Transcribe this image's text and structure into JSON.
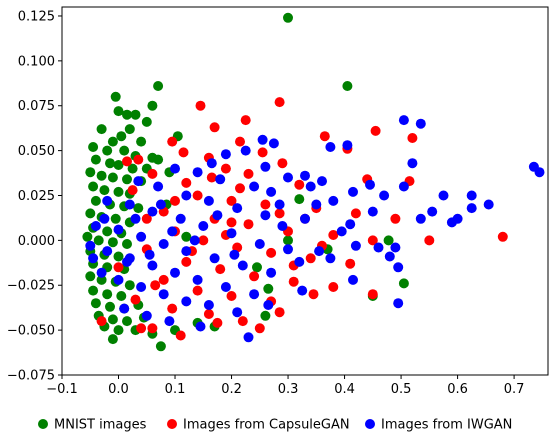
{
  "chart_data": {
    "type": "scatter",
    "title": "",
    "xlabel": "",
    "ylabel": "",
    "xlim": [
      -0.1,
      0.76
    ],
    "ylim": [
      -0.075,
      0.13
    ],
    "xticks": [
      -0.1,
      0.0,
      0.1,
      0.2,
      0.3,
      0.4,
      0.5,
      0.6,
      0.7
    ],
    "xtick_labels": [
      "−0.1",
      "0.0",
      "0.1",
      "0.2",
      "0.3",
      "0.4",
      "0.5",
      "0.6",
      "0.7"
    ],
    "yticks": [
      -0.075,
      -0.05,
      -0.025,
      0.0,
      0.025,
      0.05,
      0.075,
      0.1,
      0.125
    ],
    "ytick_labels": [
      "−0.075",
      "−0.050",
      "−0.025",
      "0.000",
      "0.025",
      "0.050",
      "0.075",
      "0.100",
      "0.125"
    ],
    "grid": false,
    "legend_position": "bottom",
    "series": [
      {
        "name": "MNIST images",
        "color": "#008000",
        "points": [
          [
            0.3,
            0.124
          ],
          [
            0.405,
            0.086
          ],
          [
            0.07,
            0.086
          ],
          [
            0.06,
            0.075
          ],
          [
            -0.005,
            0.08
          ],
          [
            0.0,
            0.072
          ],
          [
            0.015,
            0.07
          ],
          [
            0.03,
            0.07
          ],
          [
            0.05,
            0.066
          ],
          [
            0.02,
            0.062
          ],
          [
            -0.03,
            0.062
          ],
          [
            0.005,
            0.058
          ],
          [
            -0.01,
            0.055
          ],
          [
            0.04,
            0.055
          ],
          [
            0.105,
            0.058
          ],
          [
            -0.045,
            0.052
          ],
          [
            -0.02,
            0.05
          ],
          [
            0.01,
            0.05
          ],
          [
            0.03,
            0.047
          ],
          [
            0.06,
            0.046
          ],
          [
            -0.04,
            0.045
          ],
          [
            -0.015,
            0.043
          ],
          [
            0.0,
            0.042
          ],
          [
            0.025,
            0.04
          ],
          [
            0.05,
            0.04
          ],
          [
            -0.05,
            0.038
          ],
          [
            -0.03,
            0.036
          ],
          [
            -0.01,
            0.035
          ],
          [
            0.015,
            0.034
          ],
          [
            0.04,
            0.033
          ],
          [
            -0.045,
            0.03
          ],
          [
            -0.025,
            0.028
          ],
          [
            0.0,
            0.027
          ],
          [
            0.02,
            0.026
          ],
          [
            -0.04,
            0.022
          ],
          [
            -0.015,
            0.02
          ],
          [
            0.01,
            0.019
          ],
          [
            0.035,
            0.018
          ],
          [
            -0.05,
            0.015
          ],
          [
            -0.03,
            0.013
          ],
          [
            -0.005,
            0.012
          ],
          [
            0.02,
            0.01
          ],
          [
            -0.045,
            0.007
          ],
          [
            -0.02,
            0.005
          ],
          [
            0.005,
            0.004
          ],
          [
            -0.055,
            0.002
          ],
          [
            -0.035,
            0.0
          ],
          [
            -0.01,
            -0.001
          ],
          [
            0.015,
            -0.002
          ],
          [
            -0.05,
            -0.006
          ],
          [
            -0.025,
            -0.008
          ],
          [
            0.0,
            -0.009
          ],
          [
            -0.045,
            -0.013
          ],
          [
            -0.02,
            -0.015
          ],
          [
            0.01,
            -0.016
          ],
          [
            -0.05,
            -0.02
          ],
          [
            -0.03,
            -0.022
          ],
          [
            -0.005,
            -0.023
          ],
          [
            0.02,
            -0.025
          ],
          [
            -0.045,
            -0.028
          ],
          [
            -0.02,
            -0.03
          ],
          [
            0.005,
            -0.031
          ],
          [
            -0.04,
            -0.035
          ],
          [
            -0.015,
            -0.037
          ],
          [
            0.01,
            -0.038
          ],
          [
            0.035,
            -0.036
          ],
          [
            -0.035,
            -0.042
          ],
          [
            -0.01,
            -0.044
          ],
          [
            0.015,
            -0.045
          ],
          [
            0.045,
            -0.043
          ],
          [
            -0.025,
            -0.048
          ],
          [
            0.0,
            -0.05
          ],
          [
            0.03,
            -0.05
          ],
          [
            -0.01,
            -0.055
          ],
          [
            0.06,
            -0.052
          ],
          [
            0.075,
            -0.059
          ],
          [
            0.1,
            -0.05
          ],
          [
            0.07,
            0.045
          ],
          [
            0.09,
            0.038
          ],
          [
            0.085,
            0.02
          ],
          [
            0.12,
            0.002
          ],
          [
            0.26,
            -0.042
          ],
          [
            0.505,
            -0.024
          ],
          [
            0.45,
            -0.031
          ],
          [
            0.478,
            0.0
          ],
          [
            0.265,
            -0.027
          ],
          [
            0.3,
            0.0
          ],
          [
            0.245,
            -0.015
          ],
          [
            0.17,
            -0.048
          ],
          [
            0.14,
            -0.046
          ],
          [
            0.32,
            0.023
          ],
          [
            0.37,
            -0.005
          ]
        ]
      },
      {
        "name": "Images from CapsuleGAN",
        "color": "#ff0000",
        "points": [
          [
            0.285,
            0.077
          ],
          [
            0.145,
            0.075
          ],
          [
            0.225,
            0.067
          ],
          [
            0.17,
            0.063
          ],
          [
            0.215,
            0.055
          ],
          [
            0.365,
            0.058
          ],
          [
            0.455,
            0.061
          ],
          [
            0.52,
            0.057
          ],
          [
            0.095,
            0.055
          ],
          [
            0.115,
            0.049
          ],
          [
            0.255,
            0.049
          ],
          [
            0.405,
            0.051
          ],
          [
            0.16,
            0.046
          ],
          [
            0.29,
            0.043
          ],
          [
            0.035,
            0.045
          ],
          [
            0.19,
            0.04
          ],
          [
            0.23,
            0.037
          ],
          [
            0.06,
            0.037
          ],
          [
            0.12,
            0.032
          ],
          [
            0.32,
            0.031
          ],
          [
            0.44,
            0.034
          ],
          [
            0.515,
            0.033
          ],
          [
            0.68,
            0.002
          ],
          [
            0.14,
            0.025
          ],
          [
            0.2,
            0.022
          ],
          [
            0.26,
            0.02
          ],
          [
            0.35,
            0.018
          ],
          [
            0.42,
            0.015
          ],
          [
            0.49,
            0.012
          ],
          [
            0.08,
            0.016
          ],
          [
            0.17,
            0.012
          ],
          [
            0.23,
            0.009
          ],
          [
            0.3,
            0.005
          ],
          [
            0.38,
            0.003
          ],
          [
            0.45,
            0.0
          ],
          [
            0.55,
            0.0
          ],
          [
            0.1,
            0.005
          ],
          [
            0.15,
            0.0
          ],
          [
            0.21,
            -0.004
          ],
          [
            0.27,
            -0.007
          ],
          [
            0.34,
            -0.01
          ],
          [
            0.41,
            -0.013
          ],
          [
            0.05,
            -0.005
          ],
          [
            0.12,
            -0.012
          ],
          [
            0.18,
            -0.016
          ],
          [
            0.24,
            -0.02
          ],
          [
            0.31,
            -0.023
          ],
          [
            0.38,
            -0.026
          ],
          [
            0.45,
            -0.03
          ],
          [
            0.08,
            -0.022
          ],
          [
            0.14,
            -0.028
          ],
          [
            0.2,
            -0.031
          ],
          [
            0.27,
            -0.034
          ],
          [
            0.345,
            -0.03
          ],
          [
            0.03,
            -0.033
          ],
          [
            0.095,
            -0.038
          ],
          [
            0.16,
            -0.041
          ],
          [
            0.22,
            -0.045
          ],
          [
            0.285,
            -0.04
          ],
          [
            -0.03,
            -0.045
          ],
          [
            0.04,
            -0.049
          ],
          [
            0.11,
            -0.053
          ],
          [
            0.175,
            -0.046
          ],
          [
            0.25,
            -0.049
          ],
          [
            0.065,
            -0.025
          ],
          [
            0.13,
            -0.006
          ],
          [
            0.19,
            0.003
          ],
          [
            0.1,
            0.022
          ],
          [
            0.05,
            0.012
          ],
          [
            0.0,
            -0.015
          ],
          [
            0.025,
            0.028
          ],
          [
            0.31,
            -0.014
          ],
          [
            0.285,
            0.015
          ],
          [
            0.215,
            0.029
          ],
          [
            0.06,
            -0.049
          ],
          [
            0.015,
            0.044
          ],
          [
            0.165,
            0.035
          ],
          [
            0.2,
            0.01
          ],
          [
            0.36,
            -0.003
          ],
          [
            0.33,
            0.012
          ]
        ]
      },
      {
        "name": "Images from IWGAN",
        "color": "#0000ff",
        "points": [
          [
            0.735,
            0.041
          ],
          [
            0.745,
            0.038
          ],
          [
            0.505,
            0.067
          ],
          [
            0.535,
            0.065
          ],
          [
            0.405,
            0.053
          ],
          [
            0.375,
            0.052
          ],
          [
            0.255,
            0.056
          ],
          [
            0.275,
            0.054
          ],
          [
            0.225,
            0.05
          ],
          [
            0.19,
            0.048
          ],
          [
            0.52,
            0.043
          ],
          [
            0.575,
            0.025
          ],
          [
            0.625,
            0.025
          ],
          [
            0.655,
            0.02
          ],
          [
            0.505,
            0.03
          ],
          [
            0.445,
            0.031
          ],
          [
            0.33,
            0.036
          ],
          [
            0.34,
            0.03
          ],
          [
            0.3,
            0.035
          ],
          [
            0.6,
            0.012
          ],
          [
            0.625,
            0.018
          ],
          [
            0.59,
            0.01
          ],
          [
            0.42,
            -0.003
          ],
          [
            0.415,
            -0.022
          ],
          [
            0.48,
            -0.009
          ],
          [
            0.495,
            -0.035
          ],
          [
            0.49,
            -0.004
          ],
          [
            0.41,
            0.009
          ],
          [
            0.35,
            0.02
          ],
          [
            0.38,
            0.022
          ],
          [
            0.27,
            0.027
          ],
          [
            0.24,
            0.03
          ],
          [
            0.18,
            0.034
          ],
          [
            0.14,
            0.038
          ],
          [
            0.1,
            0.04
          ],
          [
            0.33,
            0.012
          ],
          [
            0.29,
            0.008
          ],
          [
            0.26,
            0.014
          ],
          [
            0.21,
            0.018
          ],
          [
            0.16,
            0.022
          ],
          [
            0.12,
            0.025
          ],
          [
            0.07,
            0.03
          ],
          [
            0.035,
            0.033
          ],
          [
            0.3,
            -0.005
          ],
          [
            0.25,
            -0.002
          ],
          [
            0.2,
            0.004
          ],
          [
            0.15,
            0.008
          ],
          [
            0.11,
            0.012
          ],
          [
            0.06,
            0.016
          ],
          [
            0.02,
            0.02
          ],
          [
            -0.02,
            0.022
          ],
          [
            0.27,
            -0.018
          ],
          [
            0.22,
            -0.014
          ],
          [
            0.17,
            -0.01
          ],
          [
            0.12,
            -0.006
          ],
          [
            0.08,
            -0.002
          ],
          [
            0.04,
            0.002
          ],
          [
            0.0,
            0.006
          ],
          [
            -0.04,
            0.008
          ],
          [
            0.24,
            -0.03
          ],
          [
            0.19,
            -0.026
          ],
          [
            0.14,
            -0.022
          ],
          [
            0.1,
            -0.018
          ],
          [
            0.06,
            -0.014
          ],
          [
            0.02,
            -0.01
          ],
          [
            -0.02,
            -0.006
          ],
          [
            -0.05,
            -0.003
          ],
          [
            0.21,
            -0.04
          ],
          [
            0.16,
            -0.036
          ],
          [
            0.12,
            -0.034
          ],
          [
            0.08,
            -0.03
          ],
          [
            0.04,
            -0.026
          ],
          [
            0.0,
            -0.022
          ],
          [
            -0.03,
            -0.018
          ],
          [
            0.23,
            -0.054
          ],
          [
            0.145,
            -0.048
          ],
          [
            0.09,
            -0.045
          ],
          [
            0.05,
            -0.042
          ],
          [
            0.01,
            -0.038
          ],
          [
            0.45,
            0.016
          ],
          [
            0.395,
            0.005
          ],
          [
            0.355,
            -0.006
          ],
          [
            0.32,
            -0.012
          ],
          [
            0.285,
            0.02
          ],
          [
            0.36,
            0.033
          ],
          [
            0.415,
            0.027
          ],
          [
            0.47,
            0.025
          ],
          [
            0.535,
            0.012
          ],
          [
            0.555,
            0.016
          ],
          [
            0.495,
            -0.015
          ],
          [
            0.375,
            -0.01
          ],
          [
            0.46,
            -0.004
          ],
          [
            0.325,
            -0.028
          ],
          [
            0.265,
            -0.036
          ],
          [
            0.205,
            -0.008
          ],
          [
            0.175,
            0.014
          ],
          [
            0.135,
            0.0
          ],
          [
            0.095,
            0.005
          ],
          [
            0.055,
            -0.008
          ],
          [
            0.015,
            -0.012
          ],
          [
            -0.025,
            0.012
          ],
          [
            -0.045,
            -0.01
          ],
          [
            0.03,
            0.012
          ],
          [
            0.075,
            0.02
          ],
          [
            0.165,
            0.043
          ],
          [
            0.26,
            0.041
          ]
        ]
      }
    ]
  }
}
